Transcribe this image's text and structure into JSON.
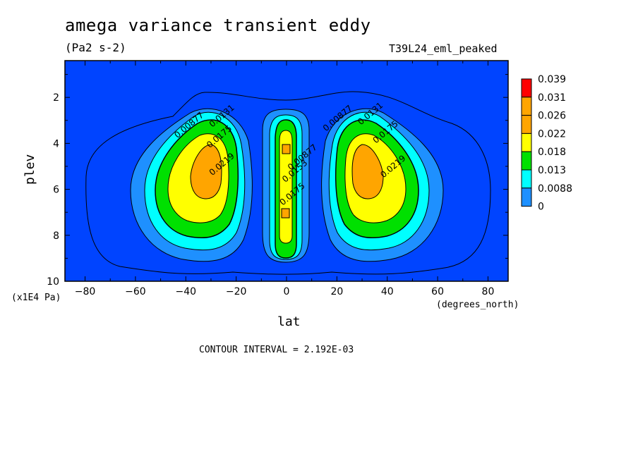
{
  "chart_data": {
    "type": "filled-contour",
    "title": "amega variance transient eddy",
    "units": "(Pa2 s-2)",
    "experiment": "T39L24_eml_peaked",
    "xlabel": "lat",
    "x_units": "(degrees_north)",
    "ylabel": "plev",
    "y_units": "(x1E4 Pa)",
    "xlim": [
      -88,
      88
    ],
    "ylim": [
      0.4,
      10
    ],
    "y_inverted": true,
    "x_ticks": [
      -80,
      -60,
      -40,
      -20,
      0,
      20,
      40,
      60,
      80
    ],
    "y_ticks": [
      2,
      4,
      6,
      8,
      10
    ],
    "x_tick_labels": [
      "−80",
      "−60",
      "−40",
      "−20",
      "0",
      "20",
      "40",
      "60",
      "80"
    ],
    "y_tick_labels": [
      "2",
      "4",
      "6",
      "8",
      "10"
    ],
    "colorbar_labels": [
      "0.039",
      "0.031",
      "0.026",
      "0.022",
      "0.018",
      "0.013",
      "0.0088",
      "0"
    ],
    "colorbar_levels": [
      0.039,
      0.031,
      0.026,
      0.022,
      0.018,
      0.013,
      0.0088,
      0
    ],
    "colorbar_colors": [
      "#ff0000",
      "#ffa500",
      "#ffa500",
      "#ffff00",
      "#00e000",
      "#00ffff",
      "#1e90ff",
      "#0044ff"
    ],
    "contour_interval": "CONTOUR INTERVAL = 2.192E-03",
    "contour_labels": [
      {
        "text": "0.00877",
        "lat": -38,
        "plev": 3.3
      },
      {
        "text": "0.0131",
        "lat": -25,
        "plev": 2.9
      },
      {
        "text": "0.0175",
        "lat": -26,
        "plev": 3.8
      },
      {
        "text": "0.0219",
        "lat": -25,
        "plev": 5.0
      },
      {
        "text": "0.00877",
        "lat": 7,
        "plev": 4.7
      },
      {
        "text": "0.0153",
        "lat": 4,
        "plev": 5.3
      },
      {
        "text": "0.0175",
        "lat": 3,
        "plev": 6.3
      },
      {
        "text": "0.00877",
        "lat": 21,
        "plev": 3.0
      },
      {
        "text": "0.0131",
        "lat": 34,
        "plev": 2.8
      },
      {
        "text": "0.0175",
        "lat": 40,
        "plev": 3.6
      },
      {
        "text": "0.0219",
        "lat": 43,
        "plev": 5.1
      }
    ],
    "features": [
      {
        "name": "southern-midlatitude-maximum",
        "lat": -32,
        "plev": 4.8,
        "peak": 0.028
      },
      {
        "name": "equatorial-column",
        "lat": 0,
        "plev": 5.5,
        "peak": 0.026
      },
      {
        "name": "northern-midlatitude-maximum",
        "lat": 32,
        "plev": 4.8,
        "peak": 0.028
      }
    ]
  }
}
